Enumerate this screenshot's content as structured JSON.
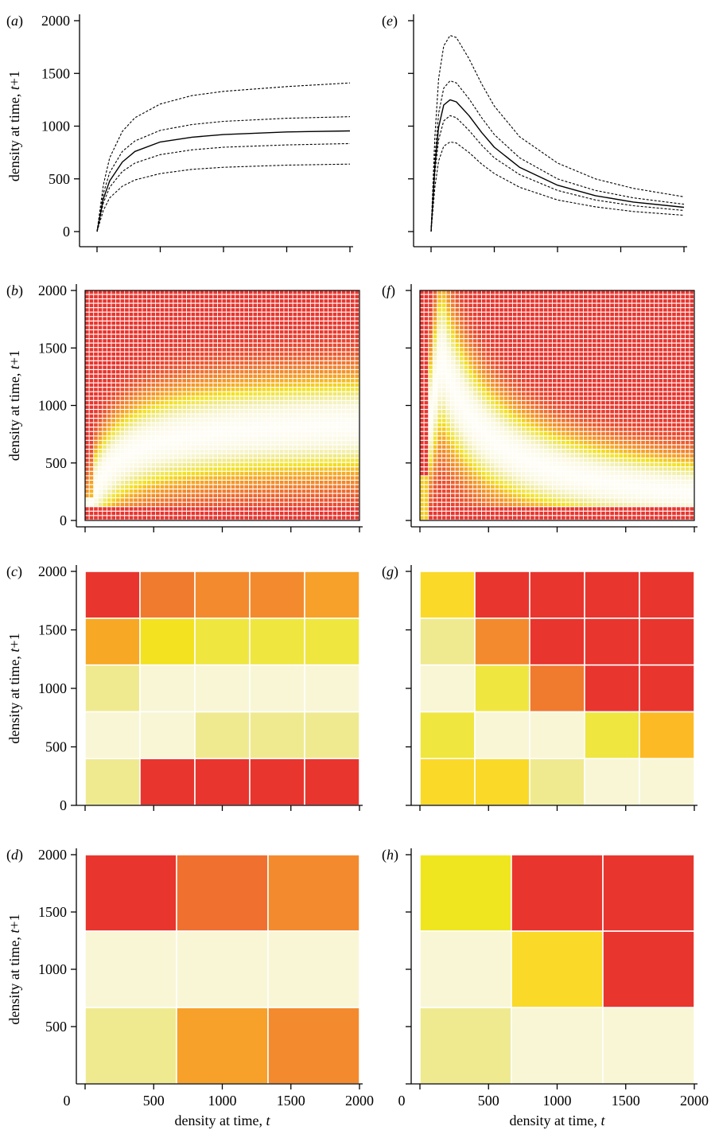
{
  "chart_data": [
    {
      "id": "a",
      "panel_label": "(a)",
      "type": "line",
      "ylabel": "density at time, t+1",
      "xlim": [
        0,
        2000
      ],
      "ylim": [
        0,
        2000
      ],
      "yticks": [
        "0",
        "500",
        "1000",
        "1500",
        "2000"
      ],
      "x_tick_values": [
        0,
        500,
        1000,
        1500,
        2000
      ],
      "x_tick_labels_shown": false,
      "series": [
        {
          "style": "dashed",
          "x": [
            0,
            50,
            100,
            200,
            300,
            500,
            750,
            1000,
            1500,
            2000
          ],
          "y": [
            0,
            440,
            700,
            950,
            1080,
            1210,
            1290,
            1330,
            1375,
            1410
          ]
        },
        {
          "style": "dashed",
          "x": [
            0,
            50,
            100,
            200,
            300,
            500,
            750,
            1000,
            1500,
            2000
          ],
          "y": [
            0,
            360,
            560,
            760,
            860,
            960,
            1015,
            1045,
            1075,
            1090
          ]
        },
        {
          "style": "solid",
          "x": [
            0,
            50,
            100,
            200,
            300,
            500,
            750,
            1000,
            1500,
            2000
          ],
          "y": [
            0,
            310,
            480,
            660,
            760,
            850,
            895,
            920,
            945,
            955
          ]
        },
        {
          "style": "dashed",
          "x": [
            0,
            50,
            100,
            200,
            300,
            500,
            750,
            1000,
            1500,
            2000
          ],
          "y": [
            0,
            270,
            420,
            570,
            650,
            730,
            775,
            800,
            822,
            835
          ]
        },
        {
          "style": "dashed",
          "x": [
            0,
            50,
            100,
            200,
            300,
            500,
            750,
            1000,
            1500,
            2000
          ],
          "y": [
            0,
            200,
            320,
            430,
            490,
            550,
            590,
            610,
            630,
            640
          ]
        }
      ]
    },
    {
      "id": "e",
      "panel_label": "(e)",
      "type": "line",
      "ylabel": "",
      "xlim": [
        0,
        2000
      ],
      "ylim": [
        0,
        2000
      ],
      "x_tick_values": [
        0,
        500,
        1000,
        1500,
        2000
      ],
      "y_tick_values": [
        0,
        500,
        1000,
        1500,
        2000
      ],
      "x_tick_labels_shown": false,
      "y_tick_labels_shown": false,
      "series": [
        {
          "style": "dashed",
          "x": [
            0,
            30,
            60,
            100,
            150,
            200,
            300,
            400,
            500,
            700,
            1000,
            1300,
            1600,
            2000
          ],
          "y": [
            0,
            900,
            1450,
            1760,
            1860,
            1840,
            1640,
            1400,
            1190,
            900,
            650,
            500,
            410,
            330
          ]
        },
        {
          "style": "dashed",
          "x": [
            0,
            30,
            60,
            100,
            150,
            200,
            300,
            400,
            500,
            700,
            1000,
            1300,
            1600,
            2000
          ],
          "y": [
            0,
            700,
            1120,
            1360,
            1430,
            1410,
            1260,
            1080,
            920,
            700,
            500,
            390,
            320,
            260
          ]
        },
        {
          "style": "solid",
          "x": [
            0,
            30,
            60,
            100,
            150,
            200,
            300,
            400,
            500,
            700,
            1000,
            1300,
            1600,
            2000
          ],
          "y": [
            0,
            620,
            990,
            1200,
            1250,
            1230,
            1100,
            940,
            800,
            610,
            440,
            340,
            280,
            230
          ]
        },
        {
          "style": "dashed",
          "x": [
            0,
            30,
            60,
            100,
            150,
            200,
            300,
            400,
            500,
            700,
            1000,
            1300,
            1600,
            2000
          ],
          "y": [
            0,
            550,
            870,
            1050,
            1100,
            1080,
            960,
            820,
            700,
            540,
            390,
            300,
            245,
            200
          ]
        },
        {
          "style": "dashed",
          "x": [
            0,
            30,
            60,
            100,
            150,
            200,
            300,
            400,
            500,
            700,
            1000,
            1300,
            1600,
            2000
          ],
          "y": [
            0,
            420,
            670,
            810,
            850,
            840,
            750,
            640,
            550,
            420,
            300,
            235,
            190,
            155
          ]
        }
      ]
    },
    {
      "id": "b",
      "panel_label": "(b)",
      "type": "heatmap",
      "ylabel": "density at time, t+1",
      "xlim": [
        0,
        2000
      ],
      "ylim": [
        0,
        2000
      ],
      "yticks": [
        "0",
        "500",
        "1000",
        "1500",
        "2000"
      ],
      "x_tick_values": [
        0,
        500,
        1000,
        1500,
        2000
      ],
      "x_tick_labels_shown": false,
      "fine_grid": true,
      "dynamics": "saturating",
      "colormap": [
        "#e8352e",
        "#f07a2e",
        "#f7a824",
        "#f2e21f",
        "#efea8f",
        "#f8f6d5",
        "#fffdf4"
      ]
    },
    {
      "id": "f",
      "panel_label": "(f)",
      "type": "heatmap",
      "ylabel": "",
      "xlim": [
        0,
        2000
      ],
      "ylim": [
        0,
        2000
      ],
      "x_tick_values": [
        0,
        500,
        1000,
        1500,
        2000
      ],
      "y_tick_values": [
        0,
        500,
        1000,
        1500,
        2000
      ],
      "x_tick_labels_shown": false,
      "y_tick_labels_shown": false,
      "fine_grid": true,
      "dynamics": "overcompensating",
      "colormap": [
        "#e8352e",
        "#f07a2e",
        "#f7a824",
        "#f2e21f",
        "#efea8f",
        "#f8f6d5",
        "#fffdf4"
      ]
    },
    {
      "id": "c",
      "panel_label": "(c)",
      "type": "heatmap",
      "ylabel": "density at time, t+1",
      "xlim": [
        0,
        2000
      ],
      "ylim": [
        0,
        2000
      ],
      "yticks": [
        "0",
        "500",
        "1000",
        "1500",
        "2000"
      ],
      "x_tick_values": [
        0,
        500,
        1000,
        1500,
        2000
      ],
      "x_tick_labels_shown": false,
      "rows_bottom_to_top": [
        [
          "#efea8f",
          "#e8352e",
          "#e8352e",
          "#e8352e",
          "#e8352e"
        ],
        [
          "#f8f6d5",
          "#f8f6d5",
          "#efea8f",
          "#efea8f",
          "#efea8f"
        ],
        [
          "#efea8f",
          "#f8f6d5",
          "#f8f6d5",
          "#f8f6d5",
          "#f8f6d5"
        ],
        [
          "#f7a824",
          "#f2e21f",
          "#efe640",
          "#efe640",
          "#efe640"
        ],
        [
          "#e8352e",
          "#f07a2e",
          "#f38a2e",
          "#f38a2e",
          "#f7a02a"
        ]
      ]
    },
    {
      "id": "g",
      "panel_label": "(g)",
      "type": "heatmap",
      "ylabel": "",
      "xlim": [
        0,
        2000
      ],
      "ylim": [
        0,
        2000
      ],
      "x_tick_values": [
        0,
        500,
        1000,
        1500,
        2000
      ],
      "y_tick_values": [
        0,
        500,
        1000,
        1500,
        2000
      ],
      "x_tick_labels_shown": false,
      "y_tick_labels_shown": false,
      "rows_bottom_to_top": [
        [
          "#fad928",
          "#fad928",
          "#efea8f",
          "#f8f6d5",
          "#f8f6d5"
        ],
        [
          "#efe640",
          "#f8f6d5",
          "#f8f6d5",
          "#efe640",
          "#fcba24"
        ],
        [
          "#f8f6d5",
          "#efe640",
          "#f07a2e",
          "#e8352e",
          "#e8352e"
        ],
        [
          "#efea8f",
          "#f38a2e",
          "#e8352e",
          "#e8352e",
          "#e8352e"
        ],
        [
          "#fad928",
          "#e8352e",
          "#e8352e",
          "#e8352e",
          "#e8352e"
        ]
      ]
    },
    {
      "id": "d",
      "panel_label": "(d)",
      "type": "heatmap",
      "ylabel": "density at time, t+1",
      "xlabel": "density at time, t",
      "xlim": [
        0,
        2000
      ],
      "ylim": [
        0,
        2000
      ],
      "xticks": [
        "0",
        "500",
        "1000",
        "1500",
        "2000"
      ],
      "yticks": [
        "500",
        "1000",
        "1500",
        "2000"
      ],
      "rows_bottom_to_top": [
        [
          "#efea8f",
          "#f7a02a",
          "#f38a2e"
        ],
        [
          "#f8f6d5",
          "#f8f6d5",
          "#f8f6d5"
        ],
        [
          "#e8352e",
          "#f07030",
          "#f38a2e"
        ]
      ]
    },
    {
      "id": "h",
      "panel_label": "(h)",
      "type": "heatmap",
      "ylabel": "",
      "xlabel": "density at time, t",
      "xlim": [
        0,
        2000
      ],
      "ylim": [
        0,
        2000
      ],
      "xticks": [
        "0",
        "500",
        "1000",
        "1500",
        "2000"
      ],
      "y_tick_values": [
        0,
        500,
        1000,
        1500,
        2000
      ],
      "y_tick_labels_shown": false,
      "rows_bottom_to_top": [
        [
          "#efea8f",
          "#f8f6d5",
          "#f8f6d5"
        ],
        [
          "#f8f6d5",
          "#fad928",
          "#e8352e"
        ],
        [
          "#efe61f",
          "#e8352e",
          "#e8352e"
        ]
      ]
    }
  ]
}
